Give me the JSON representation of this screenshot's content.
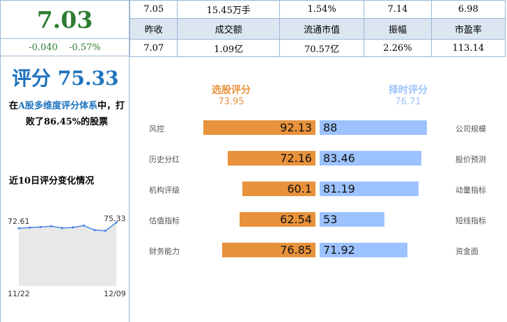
{
  "header": {
    "price": "7.03",
    "change": "-0.040",
    "change_pct": "-0.57%",
    "quote_row1": [
      "7.05",
      "15.45万手",
      "1.54%",
      "7.14",
      "6.98"
    ],
    "quote_labels": [
      "昨收",
      "成交额",
      "流通市值",
      "振幅",
      "市盈率"
    ],
    "quote_row3": [
      "7.07",
      "1.09亿",
      "70.57亿",
      "2.26%",
      "113.14"
    ]
  },
  "score": {
    "title": "评分 75.33",
    "desc_prefix": "在",
    "desc_highlight": "A股多维度评分体系",
    "desc_rest": "中，打败了86.45%的股票",
    "trend_title": "近10日评分变化情况"
  },
  "trend": {
    "start_value": "72.61",
    "end_value": "75.33",
    "start_date": "11/22",
    "end_date": "12/09",
    "values": [
      72.61,
      72.9,
      73.2,
      73.6,
      72.7,
      73.0,
      73.9,
      71.7,
      71.4,
      75.33
    ],
    "ymin": 45,
    "ymax": 85,
    "line_color": "#4a86e8",
    "fill_color": "#e8e8e8"
  },
  "breakdown": {
    "left_title": "选股评分",
    "left_score": "73.95",
    "right_title": "择时评分",
    "right_score": "76.71",
    "left_color": "#e8923c",
    "right_color": "#9cc2ff",
    "rows": [
      {
        "left_label": "风控",
        "left_value": 92.13,
        "left_text": "92.13",
        "right_label": "公司规模",
        "right_value": 88,
        "right_text": "88"
      },
      {
        "left_label": "历史分红",
        "left_value": 72.16,
        "left_text": "72.16",
        "right_label": "股价预测",
        "right_value": 83.46,
        "right_text": "83.46"
      },
      {
        "left_label": "机构评级",
        "left_value": 60.1,
        "left_text": "60.1",
        "right_label": "动量指标",
        "right_value": 81.19,
        "right_text": "81.19"
      },
      {
        "left_label": "估值指标",
        "left_value": 62.54,
        "left_text": "62.54",
        "right_label": "短线指标",
        "right_value": 53,
        "right_text": "53"
      },
      {
        "left_label": "财务能力",
        "left_value": 76.85,
        "left_text": "76.85",
        "right_label": "资金面",
        "right_value": 71.92,
        "right_text": "71.92"
      }
    ]
  }
}
